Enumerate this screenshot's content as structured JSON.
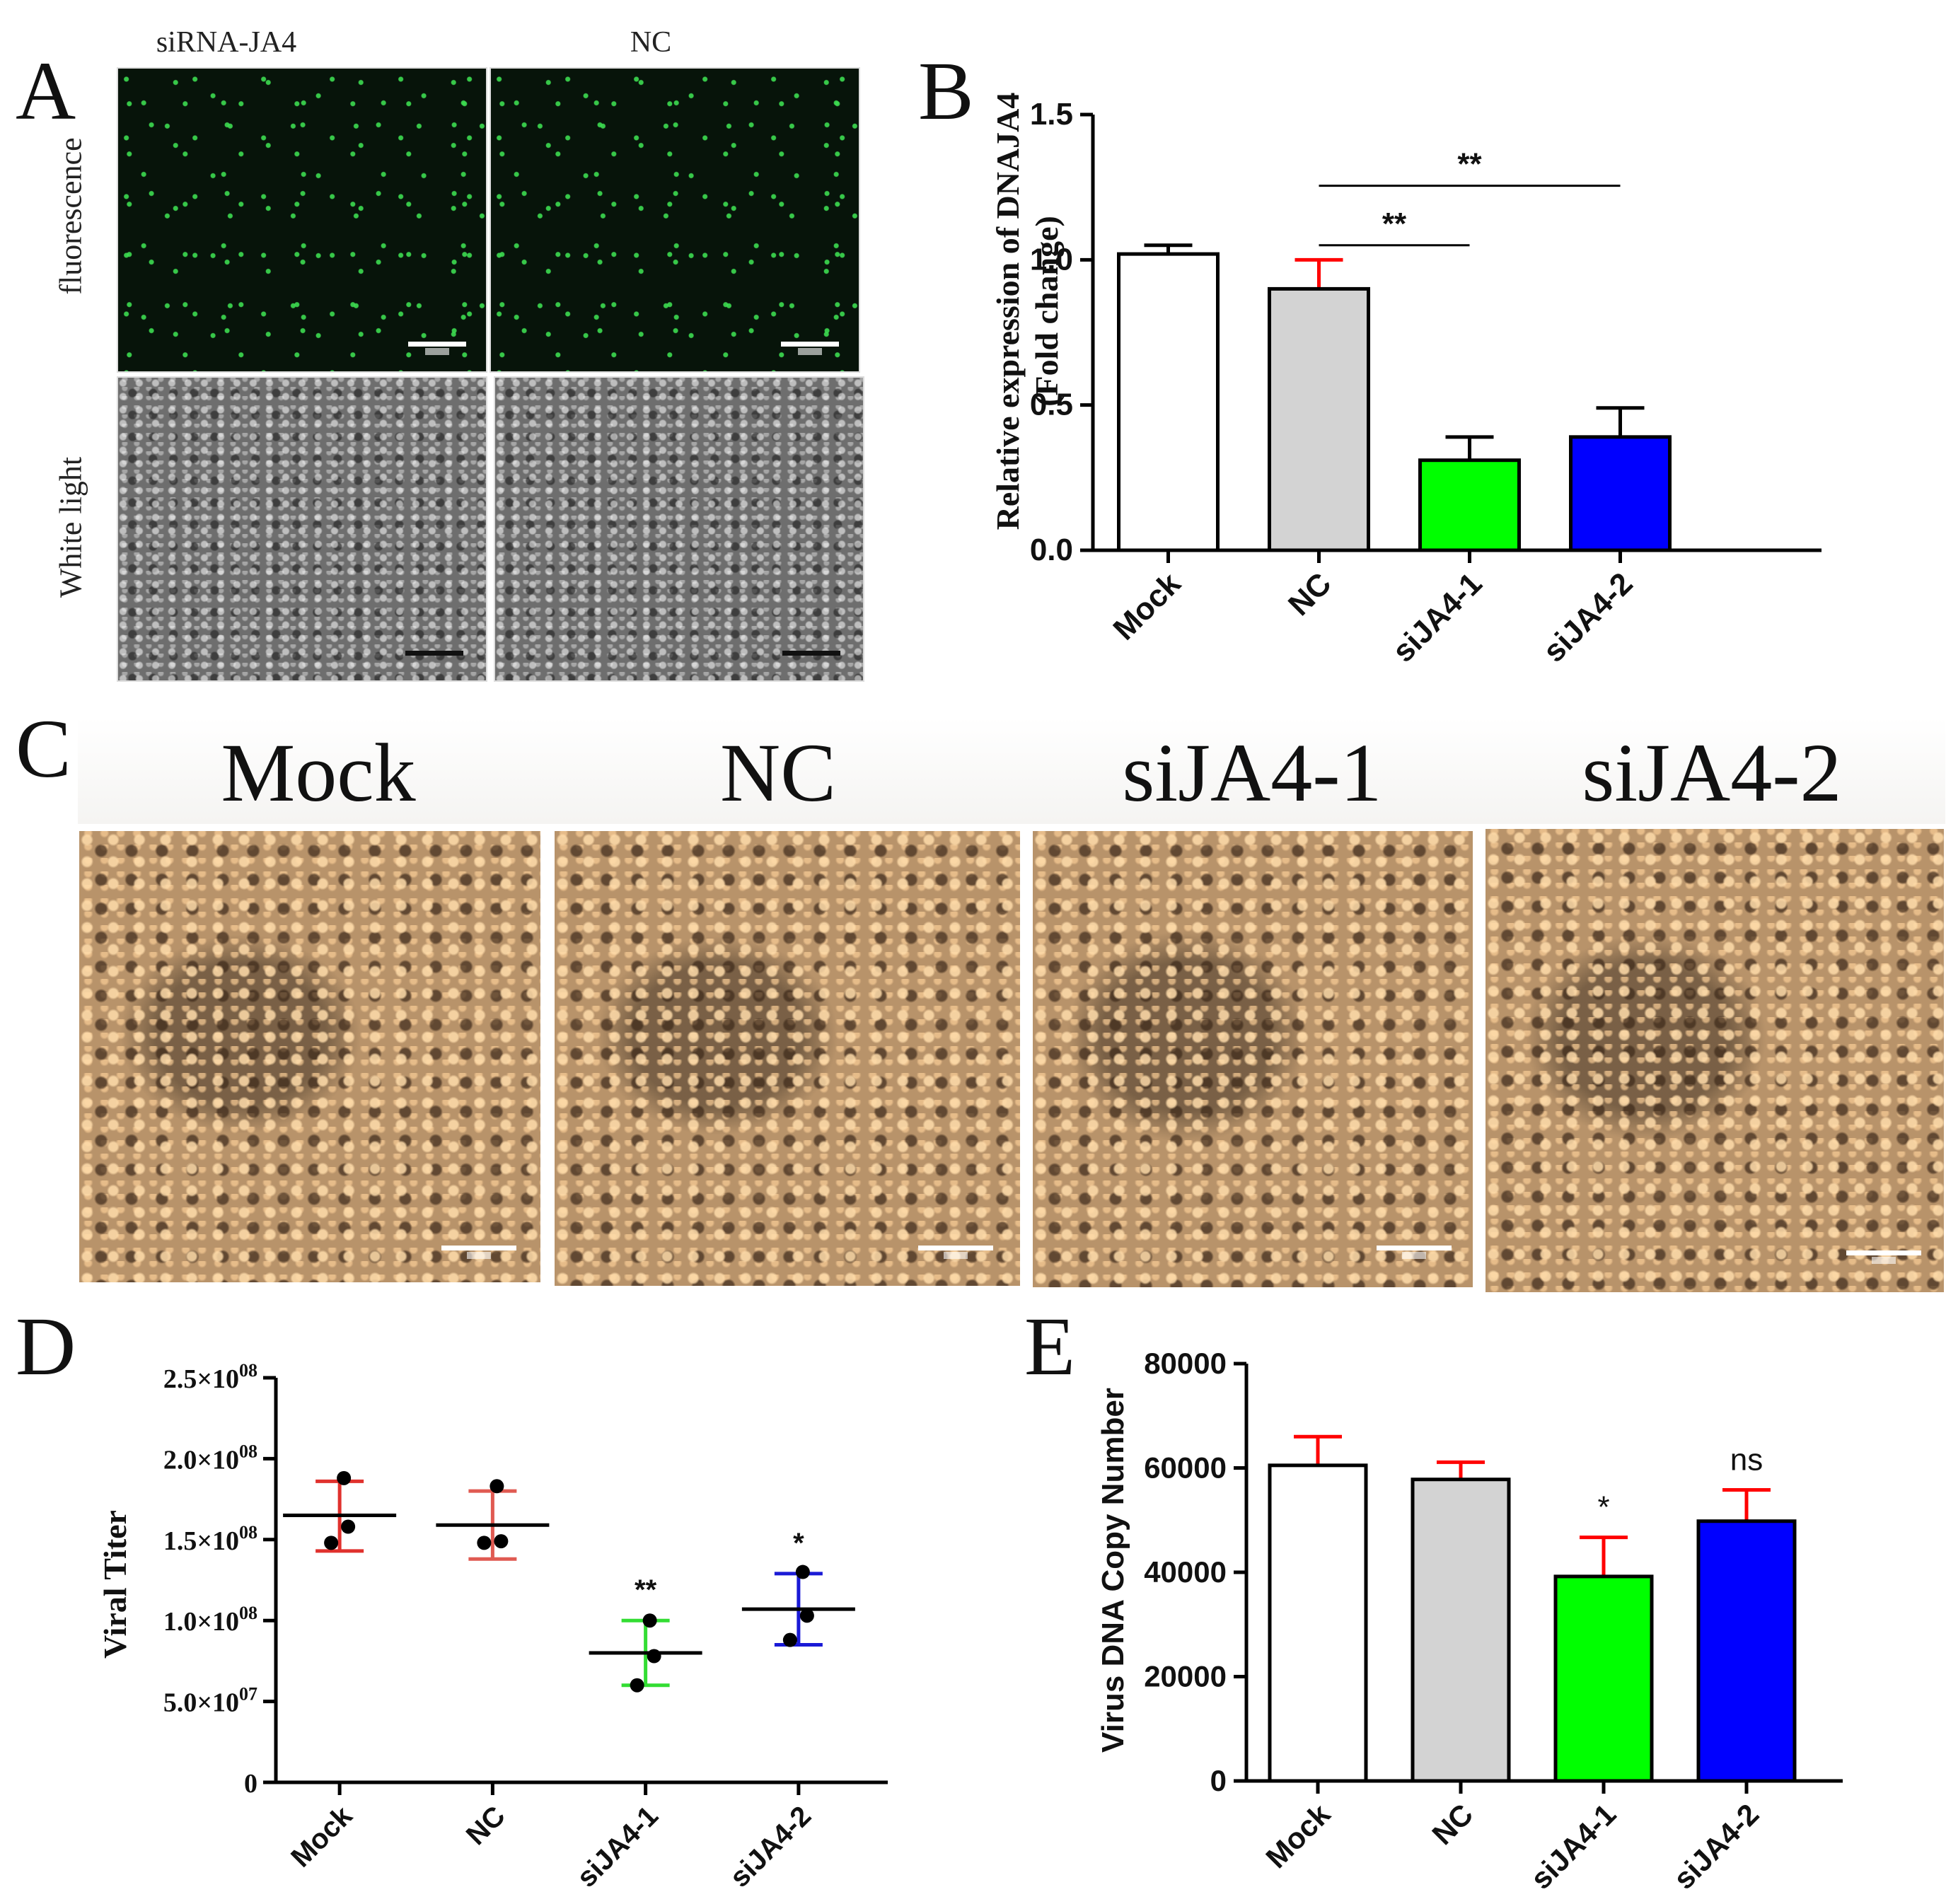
{
  "panels": {
    "A": {
      "letter": "A",
      "col_labels": [
        "siRNA-JA4",
        "NC"
      ],
      "row_labels": [
        "fluorescence",
        "White light"
      ]
    },
    "B": {
      "letter": "B"
    },
    "C": {
      "letter": "C",
      "col_labels": [
        "Mock",
        "NC",
        "siJA4-1",
        "siJA4-2"
      ]
    },
    "D": {
      "letter": "D"
    },
    "E": {
      "letter": "E"
    }
  },
  "chart_data": [
    {
      "id": "B",
      "type": "bar",
      "categories": [
        "Mock",
        "NC",
        "siJA4-1",
        "siJA4-2"
      ],
      "values": [
        1.02,
        0.9,
        0.31,
        0.39
      ],
      "errors": [
        0.03,
        0.1,
        0.08,
        0.1
      ],
      "bar_colors": [
        "#ffffff",
        "#d3d3d3",
        "#00ff00",
        "#0000ff"
      ],
      "error_colors": [
        "#000000",
        "#ff0000",
        "#000000",
        "#000000"
      ],
      "ylabel": "Relative expression of DNAJA4",
      "ylabel2": "(Fold change)",
      "ylim": [
        0,
        1.5
      ],
      "yticks": [
        "0.0",
        "0.5",
        "1.0",
        "1.5"
      ],
      "significance": [
        {
          "from": "NC",
          "to": "siJA4-1",
          "label": "**"
        },
        {
          "from": "NC",
          "to": "siJA4-2",
          "label": "**"
        }
      ]
    },
    {
      "id": "D",
      "type": "scatter",
      "categories": [
        "Mock",
        "NC",
        "siJA4-1",
        "siJA4-2"
      ],
      "points": [
        [
          188000000,
          158000000,
          148000000
        ],
        [
          183000000,
          149000000,
          148000000
        ],
        [
          100000000,
          78000000,
          60000000
        ],
        [
          130000000,
          103000000,
          88000000
        ]
      ],
      "means": [
        165000000,
        159000000,
        80000000,
        107000000
      ],
      "sd_low": [
        143000000,
        138000000,
        60000000,
        85000000
      ],
      "sd_high": [
        186000000,
        180000000,
        100000000,
        129000000
      ],
      "error_colors": [
        "#e0312d",
        "#e05a52",
        "#33dd33",
        "#1a1ad6"
      ],
      "ylabel": "Viral Titer",
      "ylim": [
        0,
        250000000
      ],
      "yticks": [
        {
          "value": 0,
          "base": "0",
          "exp": ""
        },
        {
          "value": 50000000,
          "base": "5.0×10",
          "exp": "07"
        },
        {
          "value": 100000000,
          "base": "1.0×10",
          "exp": "08"
        },
        {
          "value": 150000000,
          "base": "1.5×10",
          "exp": "08"
        },
        {
          "value": 200000000,
          "base": "2.0×10",
          "exp": "08"
        },
        {
          "value": 250000000,
          "base": "2.5×10",
          "exp": "08"
        }
      ],
      "annotations": [
        "",
        "",
        "**",
        "*"
      ]
    },
    {
      "id": "E",
      "type": "bar",
      "categories": [
        "Mock",
        "NC",
        "siJA4-1",
        "siJA4-2"
      ],
      "values": [
        60500,
        57800,
        39200,
        49800
      ],
      "errors": [
        5500,
        3300,
        7500,
        6000
      ],
      "bar_colors": [
        "#ffffff",
        "#d3d3d3",
        "#00ff00",
        "#0000ff"
      ],
      "error_colors": [
        "#ff0000",
        "#ff0000",
        "#ff0000",
        "#ff0000"
      ],
      "ylabel": "Virus DNA Copy Number",
      "ylim": [
        0,
        80000
      ],
      "yticks": [
        "0",
        "20000",
        "40000",
        "60000",
        "80000"
      ],
      "annotations": [
        "",
        "",
        "*",
        "ns"
      ]
    }
  ]
}
